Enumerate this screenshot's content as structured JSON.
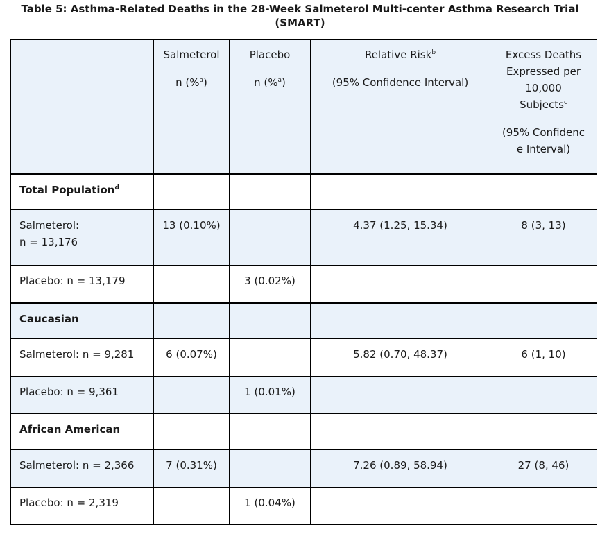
{
  "caption": {
    "line1": "Table 5: Asthma-Related Deaths in the 28-Week Salmeterol Multi-center Asthma Research Trial",
    "line2": "(SMART)"
  },
  "header": {
    "col_salmeterol": {
      "line1": "Salmeterol",
      "line2": "n (%",
      "sup": "a",
      "line2_end": ")"
    },
    "col_placebo": {
      "line1": "Placebo",
      "line2": "n (%",
      "sup": "a",
      "line2_end": ")"
    },
    "col_rr": {
      "line1": "Relative Risk",
      "sup": "b",
      "line2": "(95% Confidence Interval)"
    },
    "col_excess": {
      "line1": "Excess Deaths",
      "line2": "Expressed per",
      "line3": "10,000",
      "line4": "Subjects",
      "sup": "c",
      "line5": "(95% Confidenc",
      "line6": "e Interval)"
    }
  },
  "groups": [
    {
      "label": "Total Population",
      "sup": "d",
      "rows": [
        {
          "label_line1": "Salmeterol:",
          "label_line2": "n = 13,176",
          "salmeterol": "13 (0.10%)",
          "placebo": "",
          "rr": "4.37 (1.25, 15.34)",
          "excess": "8 (3, 13)"
        },
        {
          "label_line1": "Placebo: n = 13,179",
          "label_line2": "",
          "salmeterol": "",
          "placebo": "3 (0.02%)",
          "rr": "",
          "excess": ""
        }
      ]
    },
    {
      "label": "Caucasian",
      "sup": "",
      "rows": [
        {
          "label_line1": "Salmeterol: n = 9,281",
          "label_line2": "",
          "salmeterol": "6 (0.07%)",
          "placebo": "",
          "rr": "5.82 (0.70, 48.37)",
          "excess": "6 (1, 10)"
        },
        {
          "label_line1": "Placebo: n = 9,361",
          "label_line2": "",
          "salmeterol": "",
          "placebo": "1 (0.01%)",
          "rr": "",
          "excess": ""
        }
      ]
    },
    {
      "label": "African American",
      "sup": "",
      "rows": [
        {
          "label_line1": "Salmeterol: n = 2,366",
          "label_line2": "",
          "salmeterol": "7 (0.31%)",
          "placebo": "",
          "rr": "7.26 (0.89, 58.94)",
          "excess": "27 (8, 46)"
        },
        {
          "label_line1": "Placebo: n = 2,319",
          "label_line2": "",
          "salmeterol": "",
          "placebo": "1 (0.04%)",
          "rr": "",
          "excess": ""
        }
      ]
    }
  ]
}
